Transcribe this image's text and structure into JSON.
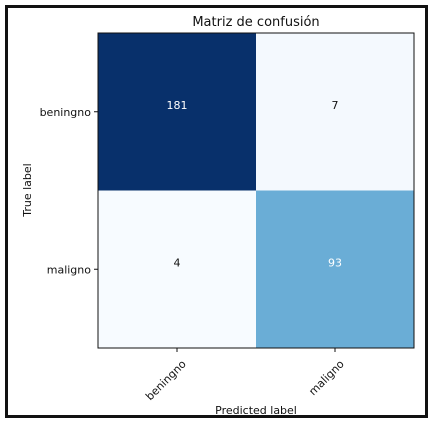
{
  "chart_data": {
    "type": "heatmap",
    "title": "Matriz de confusión",
    "xlabel": "Predicted label",
    "ylabel": "True label",
    "x_categories": [
      "beningno",
      "maligno"
    ],
    "y_categories": [
      "beningno",
      "maligno"
    ],
    "values": [
      [
        181,
        7
      ],
      [
        4,
        93
      ]
    ],
    "colormap": "Blues",
    "color_low": "#f7fbff",
    "color_high": "#08306b",
    "grid": false
  }
}
